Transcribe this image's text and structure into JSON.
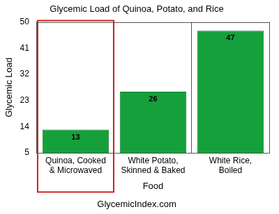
{
  "chart_data": {
    "type": "bar",
    "title": "Glycemic Load of Quinoa, Potato, and Rice",
    "x_label": "Food",
    "y_label": "Glycemic Load",
    "annotations": [
      "GlycemicIndex.com"
    ],
    "categories": [
      "Quinoa, Cooked & Microwaved",
      "White Potato, Skinned & Baked",
      "White Rice, Boiled"
    ],
    "values": [
      13,
      26,
      47
    ],
    "color": "#16a03c",
    "ylim": [
      5,
      50
    ],
    "yticks": [
      5,
      14,
      23,
      32,
      41,
      50
    ],
    "grid": true,
    "data_labels": true
  }
}
